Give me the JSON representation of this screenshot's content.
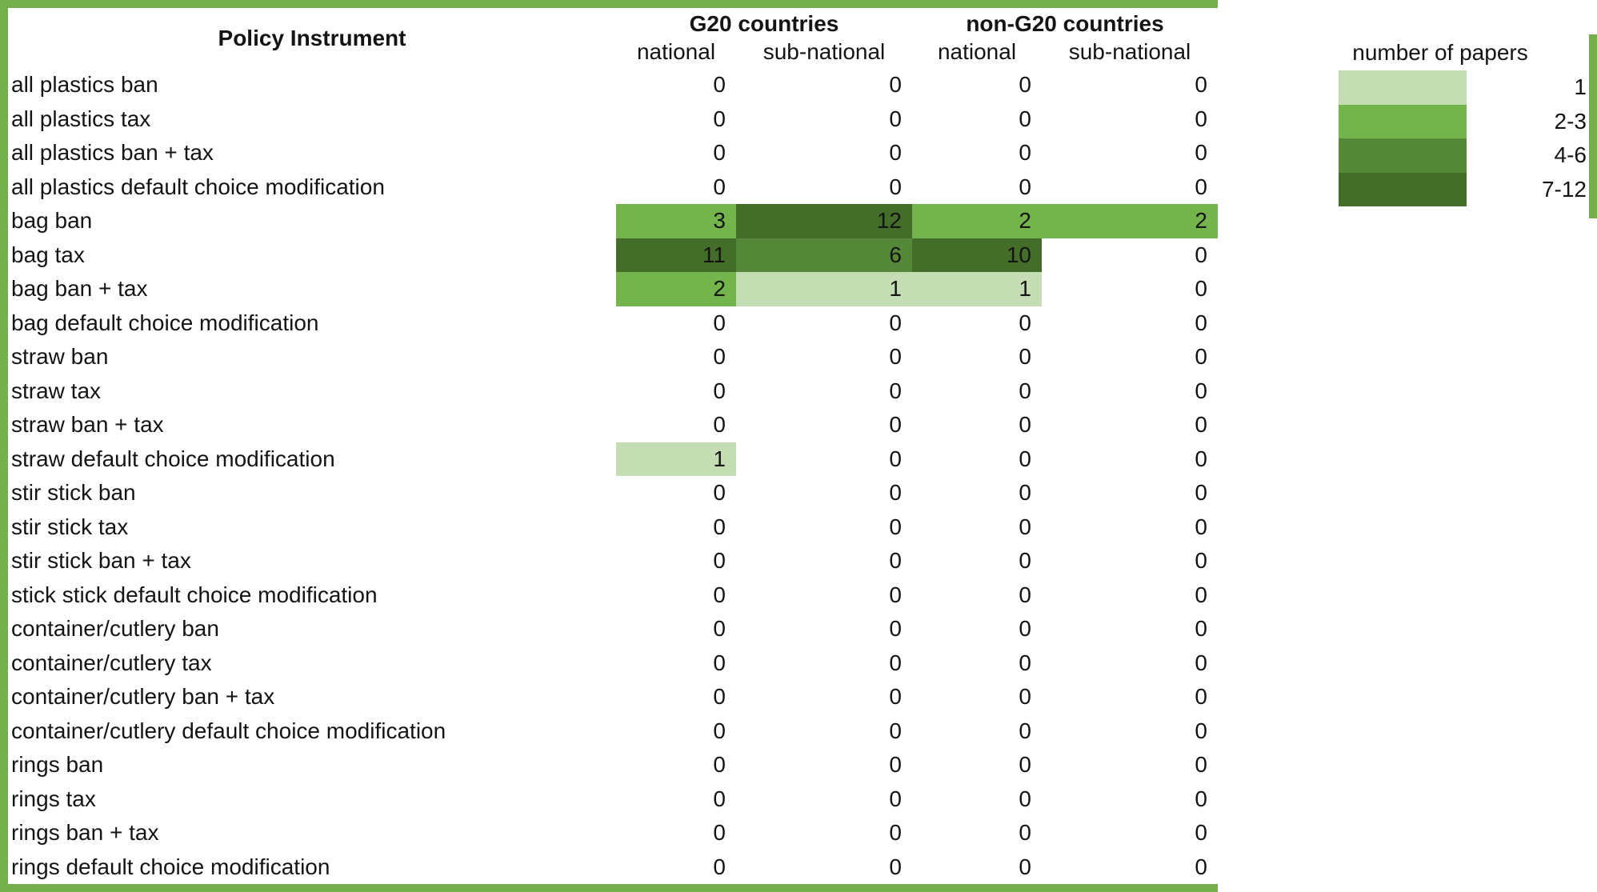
{
  "header": {
    "policy_instrument": "Policy Instrument",
    "g20": "G20 countries",
    "non_g20": "non-G20 countries",
    "subcols": [
      "national",
      "sub-national",
      "national",
      "sub-national"
    ]
  },
  "legend": {
    "title": "number of papers",
    "entries": [
      {
        "label": "1",
        "min": 1,
        "max": 1,
        "color": "#C4DDB3"
      },
      {
        "label": "2-3",
        "min": 2,
        "max": 3,
        "color": "#74B44C"
      },
      {
        "label": "4-6",
        "min": 4,
        "max": 6,
        "color": "#56883A"
      },
      {
        "label": "7-12",
        "min": 7,
        "max": 12,
        "color": "#436D29"
      }
    ]
  },
  "colors": {
    "border_green": "#74AE4D",
    "text": "#141414"
  },
  "chart_data": {
    "type": "heatmap",
    "title": "",
    "row_label_header": "Policy Instrument",
    "column_groups": [
      "G20 countries",
      "non-G20 countries"
    ],
    "columns": [
      "G20 national",
      "G20 sub-national",
      "non-G20 national",
      "non-G20 sub-national"
    ],
    "rows": [
      "all plastics ban",
      "all plastics tax",
      "all plastics ban + tax",
      "all plastics default choice modification",
      "bag ban",
      "bag tax",
      "bag ban + tax",
      "bag default choice modification",
      "straw ban",
      "straw tax",
      "straw ban + tax",
      "straw default choice modification",
      "stir stick ban",
      "stir stick tax",
      "stir stick ban + tax",
      "stick stick default choice modification",
      "container/cutlery ban",
      "container/cutlery tax",
      "container/cutlery ban + tax",
      "container/cutlery default choice modification",
      "rings ban",
      "rings tax",
      "rings ban + tax",
      "rings default choice modification"
    ],
    "values": [
      [
        0,
        0,
        0,
        0
      ],
      [
        0,
        0,
        0,
        0
      ],
      [
        0,
        0,
        0,
        0
      ],
      [
        0,
        0,
        0,
        0
      ],
      [
        3,
        12,
        2,
        2
      ],
      [
        11,
        6,
        10,
        0
      ],
      [
        2,
        1,
        1,
        0
      ],
      [
        0,
        0,
        0,
        0
      ],
      [
        0,
        0,
        0,
        0
      ],
      [
        0,
        0,
        0,
        0
      ],
      [
        0,
        0,
        0,
        0
      ],
      [
        1,
        0,
        0,
        0
      ],
      [
        0,
        0,
        0,
        0
      ],
      [
        0,
        0,
        0,
        0
      ],
      [
        0,
        0,
        0,
        0
      ],
      [
        0,
        0,
        0,
        0
      ],
      [
        0,
        0,
        0,
        0
      ],
      [
        0,
        0,
        0,
        0
      ],
      [
        0,
        0,
        0,
        0
      ],
      [
        0,
        0,
        0,
        0
      ],
      [
        0,
        0,
        0,
        0
      ],
      [
        0,
        0,
        0,
        0
      ],
      [
        0,
        0,
        0,
        0
      ],
      [
        0,
        0,
        0,
        0
      ]
    ],
    "legend_title": "number of papers",
    "legend_buckets": [
      "1",
      "2-3",
      "4-6",
      "7-12"
    ]
  }
}
